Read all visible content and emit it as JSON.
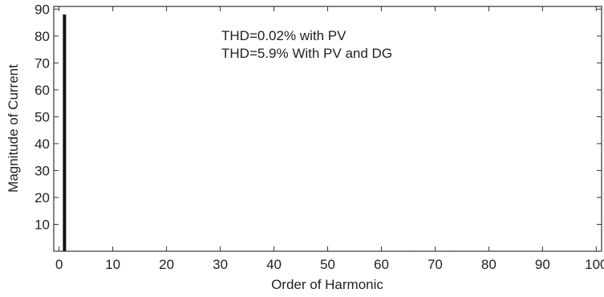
{
  "chart_data": {
    "type": "bar",
    "x": [
      1
    ],
    "values": [
      88
    ],
    "xlabel": "Order of Harmonic",
    "ylabel": "Magnitude of Current",
    "xlim": [
      -1,
      101
    ],
    "ylim": [
      0,
      91
    ],
    "xticks": [
      0,
      10,
      20,
      30,
      40,
      50,
      60,
      70,
      80,
      90,
      100
    ],
    "yticks": [
      10,
      20,
      30,
      40,
      50,
      60,
      70,
      80,
      90
    ],
    "xtick_labels": [
      "0",
      "10",
      "20",
      "30",
      "40",
      "50",
      "60",
      "70",
      "80",
      "90",
      "100"
    ],
    "ytick_labels": [
      "10",
      "20",
      "30",
      "40",
      "50",
      "60",
      "70",
      "80",
      "90"
    ],
    "annotations": [
      "THD=0.02% with PV",
      "THD=5.9% With PV and DG"
    ],
    "grid": false,
    "colors": {
      "bar": "#111111",
      "axis": "#333333"
    }
  }
}
